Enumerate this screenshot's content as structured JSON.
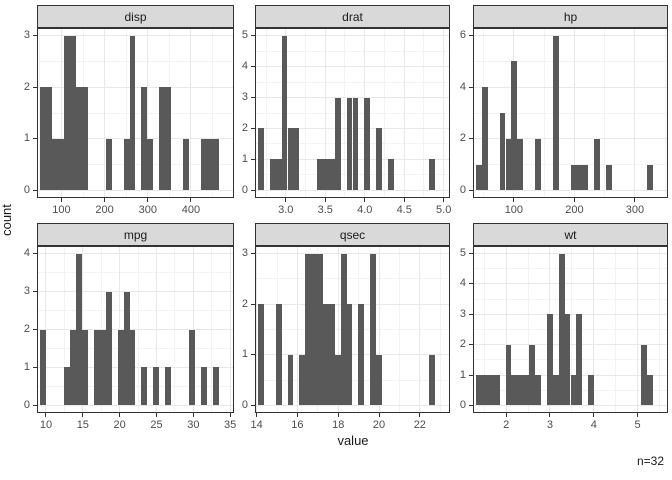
{
  "figure": {
    "y_axis_title": "count",
    "x_axis_title": "value",
    "caption": "n=32"
  },
  "colors": {
    "bar_fill": "#595959",
    "strip_fill": "#d9d9d9",
    "panel_border": "#333333",
    "grid_major": "#e8e8e8",
    "grid_minor": "#f3f3f3",
    "axis_text": "#4d4d4d",
    "title_text": "#1a1a1a",
    "panel_background": "#ffffff"
  },
  "chart_data": {
    "type": "bar",
    "subtype": "faceted_histogram",
    "title": "",
    "xlabel": "value",
    "ylabel": "count",
    "caption": "n=32",
    "n_observations": 32,
    "bins_per_facet": 30,
    "grid": "on",
    "facets": [
      {
        "label": "disp",
        "bin_start": 64.188,
        "bin_width": 13.8241,
        "counts": [
          2,
          2,
          1,
          1,
          3,
          3,
          2,
          2,
          0,
          0,
          0,
          1,
          0,
          0,
          1,
          3,
          0,
          2,
          1,
          0,
          2,
          2,
          0,
          0,
          1,
          0,
          0,
          1,
          1,
          1
        ],
        "x_tick_values": [
          100,
          200,
          300,
          400
        ],
        "x_tick_labels": [
          "100",
          "200",
          "300",
          "400"
        ],
        "y_tick_values": [
          0,
          1,
          2,
          3
        ],
        "y_tick_labels": [
          "0",
          "1",
          "2",
          "3"
        ],
        "y_max": 3
      },
      {
        "label": "drat",
        "bin_start": 2.72259,
        "bin_width": 0.0748276,
        "counts": [
          2,
          0,
          1,
          1,
          5,
          2,
          2,
          0,
          0,
          0,
          1,
          1,
          1,
          3,
          0,
          3,
          3,
          0,
          3,
          0,
          2,
          0,
          1,
          0,
          0,
          0,
          0,
          0,
          0,
          1
        ],
        "x_tick_values": [
          3.0,
          3.5,
          4.0,
          4.5,
          5.0
        ],
        "x_tick_labels": [
          "3.0",
          "3.5",
          "4.0",
          "4.5",
          "5.0"
        ],
        "y_tick_values": [
          0,
          1,
          2,
          3,
          4,
          5
        ],
        "y_tick_labels": [
          "0",
          "1",
          "2",
          "3",
          "4",
          "5"
        ],
        "y_max": 5
      },
      {
        "label": "hp",
        "bin_start": 47.1207,
        "bin_width": 9.75862,
        "counts": [
          1,
          4,
          0,
          0,
          3,
          2,
          5,
          2,
          0,
          0,
          2,
          0,
          0,
          6,
          0,
          0,
          1,
          1,
          1,
          0,
          2,
          0,
          1,
          0,
          0,
          0,
          0,
          0,
          0,
          1
        ],
        "x_tick_values": [
          100,
          200,
          300
        ],
        "x_tick_labels": [
          "100",
          "200",
          "300"
        ],
        "y_tick_values": [
          0,
          2,
          4,
          6
        ],
        "y_tick_labels": [
          "0",
          "2",
          "4",
          "6"
        ],
        "y_max": 6
      },
      {
        "label": "mpg",
        "bin_start": 9.99483,
        "bin_width": 0.810345,
        "counts": [
          2,
          0,
          0,
          0,
          1,
          2,
          4,
          2,
          0,
          2,
          2,
          3,
          0,
          2,
          3,
          2,
          0,
          1,
          0,
          1,
          0,
          1,
          0,
          0,
          0,
          2,
          0,
          1,
          0,
          1
        ],
        "x_tick_values": [
          10,
          15,
          20,
          25,
          30,
          35
        ],
        "x_tick_labels": [
          "10",
          "15",
          "20",
          "25",
          "30",
          "35"
        ],
        "y_tick_values": [
          0,
          1,
          2,
          3,
          4
        ],
        "y_tick_labels": [
          "0",
          "1",
          "2",
          "3",
          "4"
        ],
        "y_max": 4
      },
      {
        "label": "qsec",
        "bin_start": 14.35517,
        "bin_width": 0.289655,
        "counts": [
          2,
          0,
          0,
          2,
          0,
          1,
          0,
          1,
          3,
          3,
          3,
          2,
          2,
          1,
          3,
          2,
          0,
          2,
          0,
          3,
          1,
          0,
          0,
          0,
          0,
          0,
          0,
          0,
          0,
          1
        ],
        "x_tick_values": [
          14,
          16,
          18,
          20,
          22
        ],
        "x_tick_labels": [
          "14",
          "16",
          "18",
          "20",
          "22"
        ],
        "y_tick_values": [
          0,
          1,
          2,
          3
        ],
        "y_tick_labels": [
          "0",
          "1",
          "2",
          "3"
        ],
        "y_max": 3
      },
      {
        "label": "wt",
        "bin_start": 1.44557,
        "bin_width": 0.134862,
        "counts": [
          1,
          1,
          1,
          1,
          0,
          2,
          1,
          1,
          1,
          2,
          1,
          0,
          3,
          1,
          5,
          3,
          1,
          3,
          0,
          1,
          0,
          0,
          0,
          0,
          0,
          0,
          0,
          0,
          2,
          1
        ],
        "x_tick_values": [
          2,
          3,
          4,
          5
        ],
        "x_tick_labels": [
          "2",
          "3",
          "4",
          "5"
        ],
        "y_tick_values": [
          0,
          1,
          2,
          3,
          4,
          5
        ],
        "y_tick_labels": [
          "0",
          "1",
          "2",
          "3",
          "4",
          "5"
        ],
        "y_max": 5
      }
    ]
  }
}
